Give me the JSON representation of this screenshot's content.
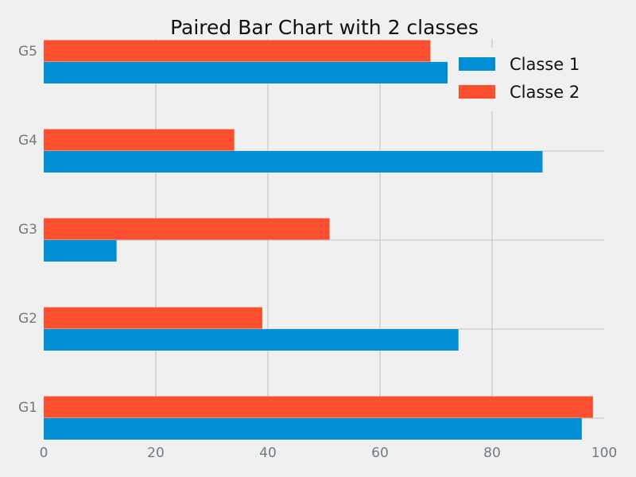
{
  "chart_data": {
    "type": "bar",
    "orientation": "horizontal",
    "title": "Paired Bar Chart with 2 classes",
    "xlabel": "",
    "ylabel": "",
    "categories": [
      "G1",
      "G2",
      "G3",
      "G4",
      "G5"
    ],
    "series": [
      {
        "name": "Classe 1",
        "color": "#008fd5",
        "values": [
          96,
          74,
          13,
          89,
          72.5
        ]
      },
      {
        "name": "Classe 2",
        "color": "#fc4f30",
        "values": [
          98,
          39,
          51,
          34,
          69
        ]
      }
    ],
    "xlim": [
      0,
      100
    ],
    "xticks": [
      "0",
      "20",
      "40",
      "60",
      "80",
      "100"
    ],
    "grid": true,
    "legend_position": "top-right"
  }
}
